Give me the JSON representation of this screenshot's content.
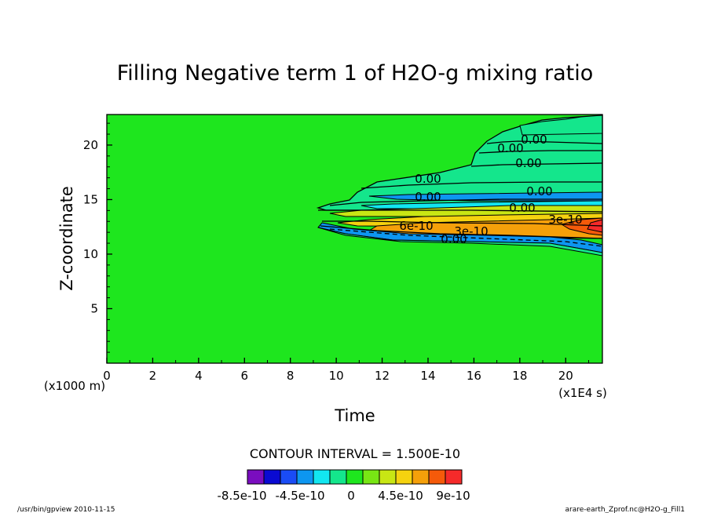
{
  "chart_data": {
    "type": "heatmap",
    "title": "Filling Negative term 1 of H2O-g mixing ratio",
    "xlabel": "Time",
    "x_unit": "(x1E4 s)",
    "ylabel": "Z-coordinate",
    "y_unit": "(x1000 m)",
    "xlim": [
      0,
      21.6
    ],
    "ylim": [
      0,
      22.8
    ],
    "xticks": [
      "0",
      "2",
      "4",
      "6",
      "8",
      "10",
      "12",
      "14",
      "16",
      "18",
      "20"
    ],
    "yticks": [
      "5",
      "10",
      "15",
      "20"
    ],
    "contour_interval": "CONTOUR INTERVAL = 1.500E-10",
    "contour_labels": [
      "0.00",
      "0.00",
      "0.00",
      "0.00",
      "0.00",
      "0.00",
      "0.00",
      "3e-10",
      "6e-10",
      "3e-10",
      "0.00"
    ],
    "colorbar": {
      "colors": [
        "#7a0dbf",
        "#0a0ad2",
        "#1a4cf5",
        "#0d96f0",
        "#12e6f0",
        "#14e68c",
        "#1ee61e",
        "#78e614",
        "#c8e614",
        "#f5d20f",
        "#f5a00a",
        "#f55a0a",
        "#f52a2a"
      ],
      "tick_labels": [
        "-8.5e-10",
        "-4.5e-10",
        "0",
        "4.5e-10",
        "9e-10"
      ]
    },
    "footer_left": "/usr/bin/gpview  2010-11-15",
    "footer_right": "arare-earth_Zprof.nc@H2O-g_Fill1"
  }
}
